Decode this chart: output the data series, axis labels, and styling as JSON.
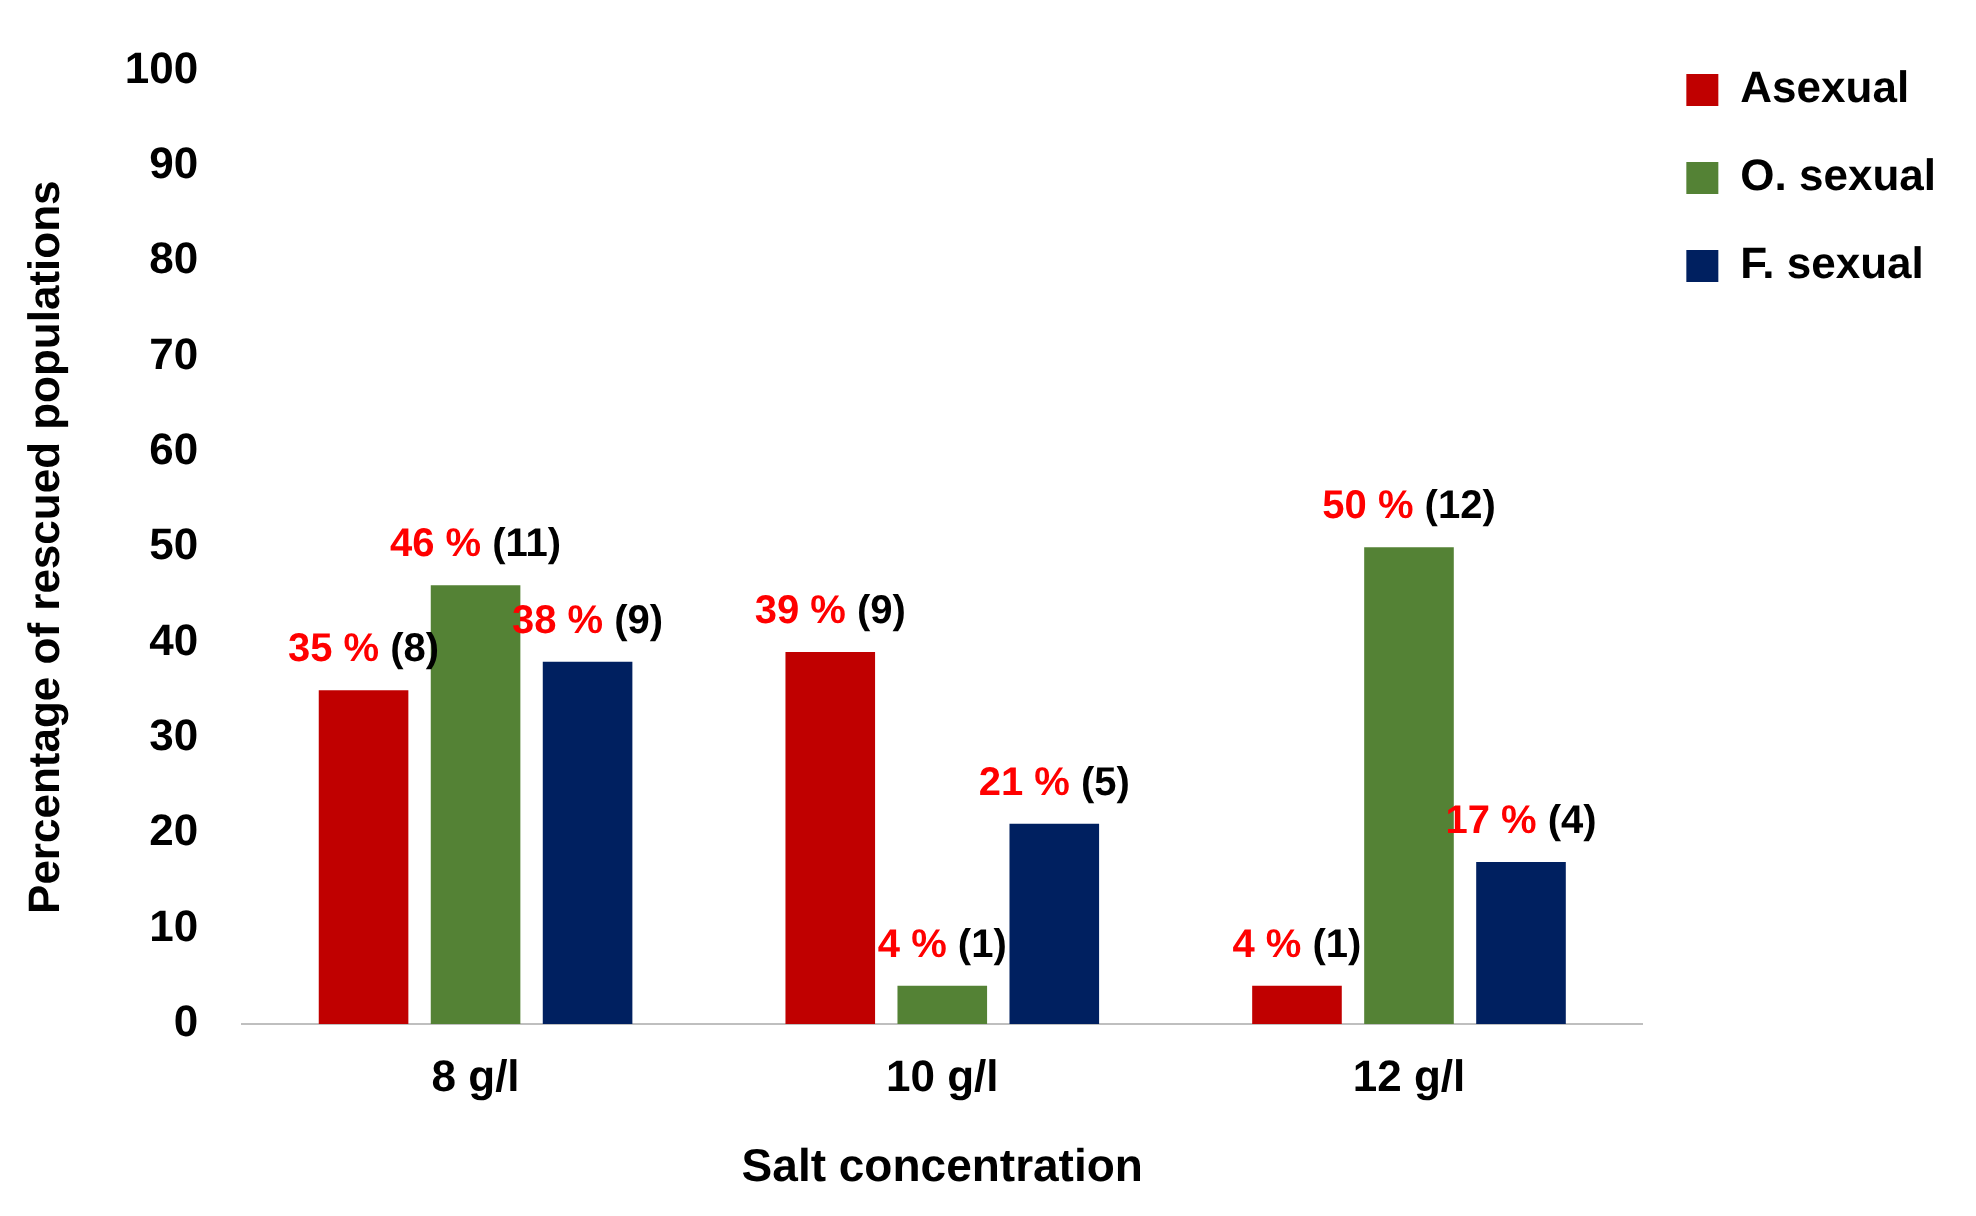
{
  "chart_data": {
    "type": "bar",
    "xlabel": "Salt concentration",
    "ylabel": "Percentage of rescued populations",
    "categories": [
      "8 g/l",
      "10 g/l",
      "12 g/l"
    ],
    "series": [
      {
        "name": "Asexual",
        "color": "#c00000",
        "values": [
          35,
          39,
          4
        ],
        "value_labels": [
          "35 % (8)",
          "39 % (9)",
          "4 % (1)"
        ]
      },
      {
        "name": "O. sexual",
        "color": "#548235",
        "values": [
          46,
          4,
          50
        ],
        "value_labels": [
          "46 % (11)",
          "4 % (1)",
          "50 % (12)"
        ]
      },
      {
        "name": "F. sexual",
        "color": "#002060",
        "values": [
          38,
          21,
          17
        ],
        "value_labels": [
          "38 % (9)",
          "21 % (5)",
          "17 % (4)"
        ]
      }
    ],
    "ylim": [
      0,
      100
    ],
    "yticks": [
      0,
      10,
      20,
      30,
      40,
      50,
      60,
      70,
      80,
      90,
      100
    ],
    "grid": false,
    "legend": "top right"
  }
}
